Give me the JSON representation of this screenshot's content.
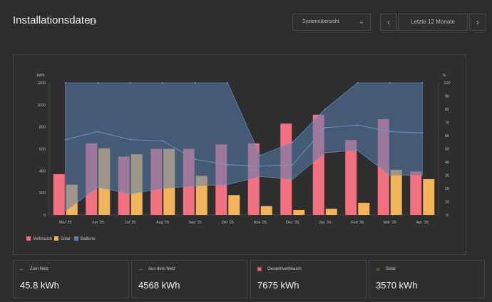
{
  "header": {
    "title": "Installationsdaten",
    "info_icon": "info-icon",
    "view_select": "Systemübersicht",
    "prev_icon": "chevron-left-icon",
    "range_label": "Letzte 12 Monate",
    "next_icon": "chevron-right-icon"
  },
  "colors": {
    "verbrauch": "#f2707f",
    "solar": "#f2b45a",
    "batterie": "#5a7fb0",
    "batterie_line": "#6a9ad0"
  },
  "chart_data": {
    "type": "bar",
    "categories": [
      "Mai '25",
      "Jun '25",
      "Jul '25",
      "Aug '25",
      "Sep '25",
      "Okt '25",
      "Nov '25",
      "Dez '25",
      "Jan '26",
      "Feb '26",
      "Mär '26",
      "Apr '26"
    ],
    "ylabel": "kWh",
    "y2label": "%",
    "ylim": [
      0,
      1200
    ],
    "y2lim": [
      0,
      100
    ],
    "yticks": [
      "0",
      "200",
      "400",
      "600",
      "800",
      "1000",
      "1200"
    ],
    "y2ticks": [
      "0",
      "10",
      "20",
      "30",
      "40",
      "50",
      "60",
      "70",
      "80",
      "90",
      "100"
    ],
    "series": [
      {
        "name": "Verbrauch",
        "values": [
          370,
          650,
          530,
          600,
          600,
          640,
          650,
          830,
          910,
          680,
          870,
          395
        ]
      },
      {
        "name": "Solar",
        "values": [
          275,
          605,
          550,
          600,
          355,
          180,
          80,
          45,
          55,
          110,
          410,
          325
        ]
      },
      {
        "name": "Batterie",
        "band_max": [
          100,
          100,
          100,
          100,
          100,
          100,
          45,
          55,
          80,
          100,
          100,
          100
        ],
        "band_min": [
          3,
          21,
          16,
          20,
          22,
          23,
          29,
          27,
          47,
          49,
          30,
          30
        ],
        "avg": [
          57,
          63,
          57,
          56,
          42,
          38,
          37,
          38,
          66,
          68,
          63,
          62
        ]
      }
    ],
    "legend": [
      "Verbrauch",
      "Solar",
      "Batterie"
    ],
    "legend_position": "bottom-left",
    "grid": false
  },
  "cards": [
    {
      "icon": "arrow-left-icon",
      "glyph": "←",
      "label": "Zum Netz",
      "value": "45.8 kWh"
    },
    {
      "icon": "arrow-right-icon",
      "glyph": "→",
      "label": "Aus dem Netz",
      "value": "4568 kWh"
    },
    {
      "icon": "consumption-icon",
      "glyph": "▣",
      "label": "Gesamtverbrauch",
      "value": "7675 kWh"
    },
    {
      "icon": "sun-icon",
      "glyph": "☼",
      "label": "Solar",
      "value": "3570 kWh"
    }
  ]
}
